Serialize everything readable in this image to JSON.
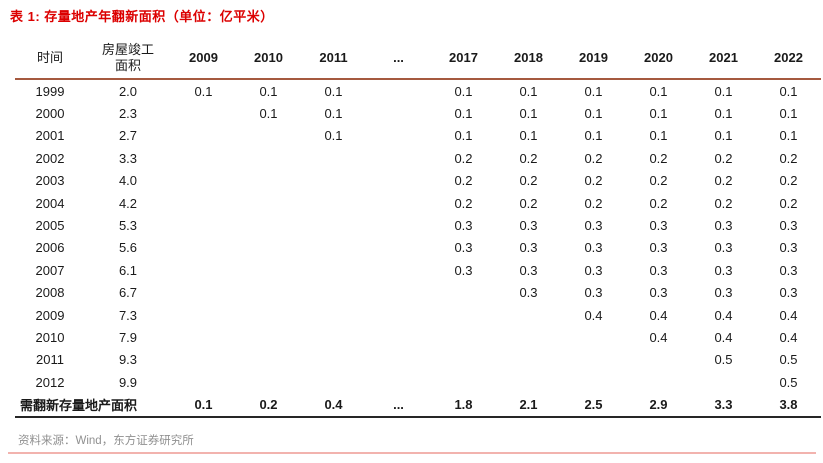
{
  "title": "表 1: 存量地产年翻新面积（单位：亿平米）",
  "source": "资料来源：Wind，东方证券研究所",
  "colors": {
    "title_red": "#dc0000",
    "header_rule": "#a5593f",
    "summary_rule": "#262626",
    "bottom_rule": "#f2b3ae",
    "source_gray": "#909090"
  },
  "table": {
    "header": {
      "col_time": "时间",
      "col_completed_line1": "房屋竣工",
      "col_completed_line2": "面积",
      "years": [
        "2009",
        "2010",
        "2011",
        "...",
        "2017",
        "2018",
        "2019",
        "2020",
        "2021",
        "2022"
      ]
    },
    "rows": [
      {
        "year": "1999",
        "completed": "2.0",
        "values": [
          "0.1",
          "0.1",
          "0.1",
          "",
          "0.1",
          "0.1",
          "0.1",
          "0.1",
          "0.1",
          "0.1"
        ]
      },
      {
        "year": "2000",
        "completed": "2.3",
        "values": [
          "",
          "0.1",
          "0.1",
          "",
          "0.1",
          "0.1",
          "0.1",
          "0.1",
          "0.1",
          "0.1"
        ]
      },
      {
        "year": "2001",
        "completed": "2.7",
        "values": [
          "",
          "",
          "0.1",
          "",
          "0.1",
          "0.1",
          "0.1",
          "0.1",
          "0.1",
          "0.1"
        ]
      },
      {
        "year": "2002",
        "completed": "3.3",
        "values": [
          "",
          "",
          "",
          "",
          "0.2",
          "0.2",
          "0.2",
          "0.2",
          "0.2",
          "0.2"
        ]
      },
      {
        "year": "2003",
        "completed": "4.0",
        "values": [
          "",
          "",
          "",
          "",
          "0.2",
          "0.2",
          "0.2",
          "0.2",
          "0.2",
          "0.2"
        ]
      },
      {
        "year": "2004",
        "completed": "4.2",
        "values": [
          "",
          "",
          "",
          "",
          "0.2",
          "0.2",
          "0.2",
          "0.2",
          "0.2",
          "0.2"
        ]
      },
      {
        "year": "2005",
        "completed": "5.3",
        "values": [
          "",
          "",
          "",
          "",
          "0.3",
          "0.3",
          "0.3",
          "0.3",
          "0.3",
          "0.3"
        ]
      },
      {
        "year": "2006",
        "completed": "5.6",
        "values": [
          "",
          "",
          "",
          "",
          "0.3",
          "0.3",
          "0.3",
          "0.3",
          "0.3",
          "0.3"
        ]
      },
      {
        "year": "2007",
        "completed": "6.1",
        "values": [
          "",
          "",
          "",
          "",
          "0.3",
          "0.3",
          "0.3",
          "0.3",
          "0.3",
          "0.3"
        ]
      },
      {
        "year": "2008",
        "completed": "6.7",
        "values": [
          "",
          "",
          "",
          "",
          "",
          "0.3",
          "0.3",
          "0.3",
          "0.3",
          "0.3"
        ]
      },
      {
        "year": "2009",
        "completed": "7.3",
        "values": [
          "",
          "",
          "",
          "",
          "",
          "",
          "0.4",
          "0.4",
          "0.4",
          "0.4"
        ]
      },
      {
        "year": "2010",
        "completed": "7.9",
        "values": [
          "",
          "",
          "",
          "",
          "",
          "",
          "",
          "0.4",
          "0.4",
          "0.4"
        ]
      },
      {
        "year": "2011",
        "completed": "9.3",
        "values": [
          "",
          "",
          "",
          "",
          "",
          "",
          "",
          "",
          "0.5",
          "0.5"
        ]
      },
      {
        "year": "2012",
        "completed": "9.9",
        "values": [
          "",
          "",
          "",
          "",
          "",
          "",
          "",
          "",
          "",
          "0.5"
        ]
      }
    ],
    "summary": {
      "label": "需翻新存量地产面积",
      "values": [
        "0.1",
        "0.2",
        "0.4",
        "...",
        "1.8",
        "2.1",
        "2.5",
        "2.9",
        "3.3",
        "3.8"
      ]
    }
  }
}
